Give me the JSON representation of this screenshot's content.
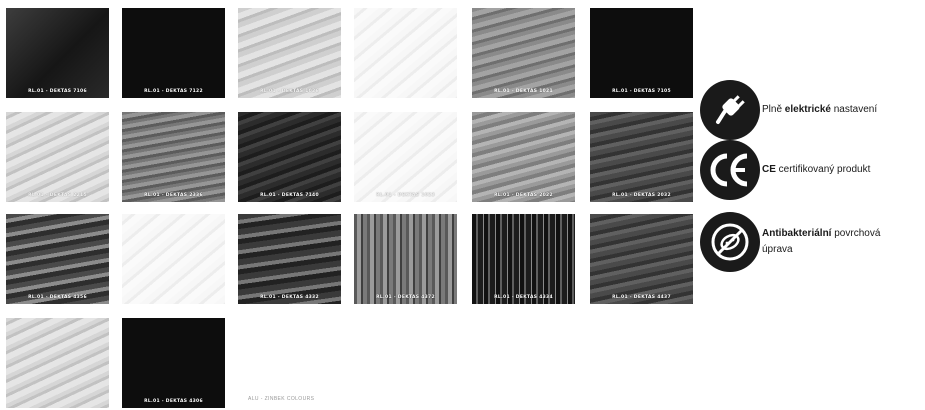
{
  "swatches": [
    {
      "caption": "RL.01 - DEKTAS 7106",
      "tone": "t-darkgrad"
    },
    {
      "caption": "RL.01 - DEKTAS 7122",
      "tone": "t-black"
    },
    {
      "caption": "RL.01 - DEKTAS 1026",
      "tone": "t-lightwood",
      "light": true
    },
    {
      "caption": "",
      "tone": "t-white",
      "light": true
    },
    {
      "caption": "RL.01 - DEKTAS 1021",
      "tone": "t-midwood",
      "light": true
    },
    {
      "caption": "RL.01 - DEKTAS 7105",
      "tone": "t-black"
    },
    {
      "caption": "RL.01 - DEKTAS 2215",
      "tone": "t-lightgrain",
      "light": true
    },
    {
      "caption": "RL.01 - DEKTAS 2336",
      "tone": "t-midgrey"
    },
    {
      "caption": "RL.01 - DEKTAS 7140",
      "tone": "t-dark"
    },
    {
      "caption": "RL.01 - DEKTAS 1023",
      "tone": "t-white",
      "light": true
    },
    {
      "caption": "RL.01 - DEKTAS 2022",
      "tone": "t-greywood"
    },
    {
      "caption": "RL.01 - DEKTAS 2032",
      "tone": "t-darkwood"
    },
    {
      "caption": "RL.01 - DEKTAS 4356",
      "tone": "t-stripes"
    },
    {
      "caption": "",
      "tone": "t-white",
      "light": true
    },
    {
      "caption": "RL.01 - DEKTAS 4332",
      "tone": "t-stripes2"
    },
    {
      "caption": "RL.01 - DEKTAS 4372",
      "tone": "t-forest"
    },
    {
      "caption": "RL.01 - DEKTAS 4334",
      "tone": "t-forest2"
    },
    {
      "caption": "RL.01 - DEKTAS 4437",
      "tone": "t-darkwood"
    },
    {
      "caption": "",
      "tone": "t-lightgrain",
      "light": true
    },
    {
      "caption": "RL.01 - DEKTAS 4306",
      "tone": "t-black"
    }
  ],
  "footnote": "ALU - ZINBEK COLOURS",
  "features": {
    "electric": {
      "bold": "elektrické",
      "pre": "Plně ",
      "post": " nastavení"
    },
    "ce": {
      "bold": "CE",
      "post": " certifikovaný produkt"
    },
    "antibac": {
      "bold": "Antibakteriální",
      "post": " povrchová úprava"
    }
  }
}
